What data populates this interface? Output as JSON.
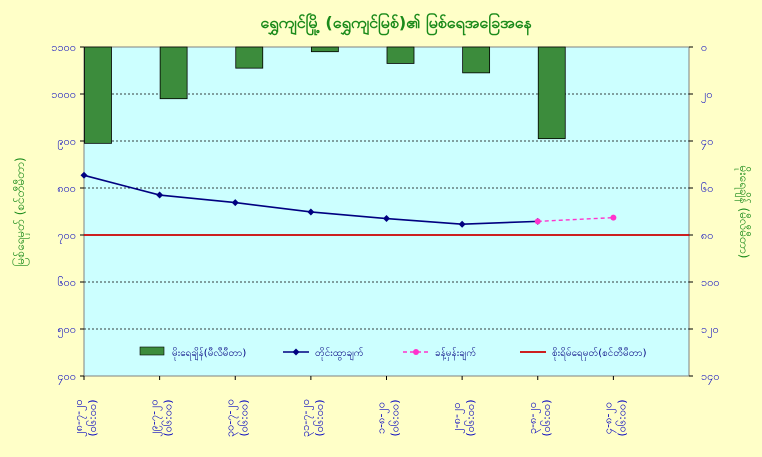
{
  "chart_data": {
    "type": "bar+line",
    "title": "ရွှေကျင်မြို့ (ရွှေကျင်မြစ်)၏ မြစ်ရေအခြေအနေ",
    "ylabel_left": "မြစ်ရေမှတ် (စင်တီမီတာ)",
    "ylabel_right": "မိုးရေချိန် (မီလီမီတာ)",
    "yleft_ticks": [
      "၁၁၀၀",
      "၁၀၀၀",
      "၉၀၀",
      "၈၀၀",
      "၇၀၀",
      "၆၀၀",
      "၅၀၀",
      "၄၀၀"
    ],
    "yright_ticks": [
      "၀",
      "၂၀",
      "၄၀",
      "၆၀",
      "၈၀",
      "၁၀၀",
      "၁၂၀",
      "၁၄၀"
    ],
    "yleft_lim": [
      400,
      1100
    ],
    "yright_lim": [
      0,
      140
    ],
    "yright_inverted": true,
    "grid": true,
    "categories": [
      [
        "၂၈-၇-၂၀",
        "(၀၆:၀၀)"
      ],
      [
        "၂၉-၇-၂၀",
        "(၀၆:၀၀)"
      ],
      [
        "၃၀-၇-၂၀",
        "(၀၆:၀၀)"
      ],
      [
        "၃၁-၇-၂၀",
        "(၀၆:၀၀)"
      ],
      [
        "၁-၈-၂၀",
        "(၀၆:၀၀)"
      ],
      [
        "၂-၈-၂၀",
        "(၀၆:၀၀)"
      ],
      [
        "၃-၈-၂၀",
        "(၀၆:၀၀)"
      ],
      [
        "၄-၈-၂၀",
        "(၀၆:၀၀)"
      ]
    ],
    "series": [
      {
        "name": "မိုးရေချိန်(မီလီမီတာ)",
        "kind": "bar",
        "axis": "right",
        "color": "#3c8c3c",
        "values": [
          41,
          22,
          9,
          2,
          7,
          11,
          39,
          null
        ]
      },
      {
        "name": "တိုင်းထွာချက်",
        "kind": "line",
        "axis": "left",
        "color": "#000080",
        "values": [
          827,
          785,
          769,
          749,
          735,
          723,
          729,
          null
        ]
      },
      {
        "name": "ခန့်မှန်းချက်",
        "kind": "dashed",
        "axis": "left",
        "color": "#ff33cc",
        "values": [
          null,
          null,
          null,
          null,
          null,
          null,
          729,
          737
        ]
      },
      {
        "name": "စိုးရိမ်ရေမှတ်(စင်တီမီတာ)",
        "kind": "hline",
        "axis": "left",
        "color": "#cc0000",
        "value": 700
      }
    ]
  }
}
